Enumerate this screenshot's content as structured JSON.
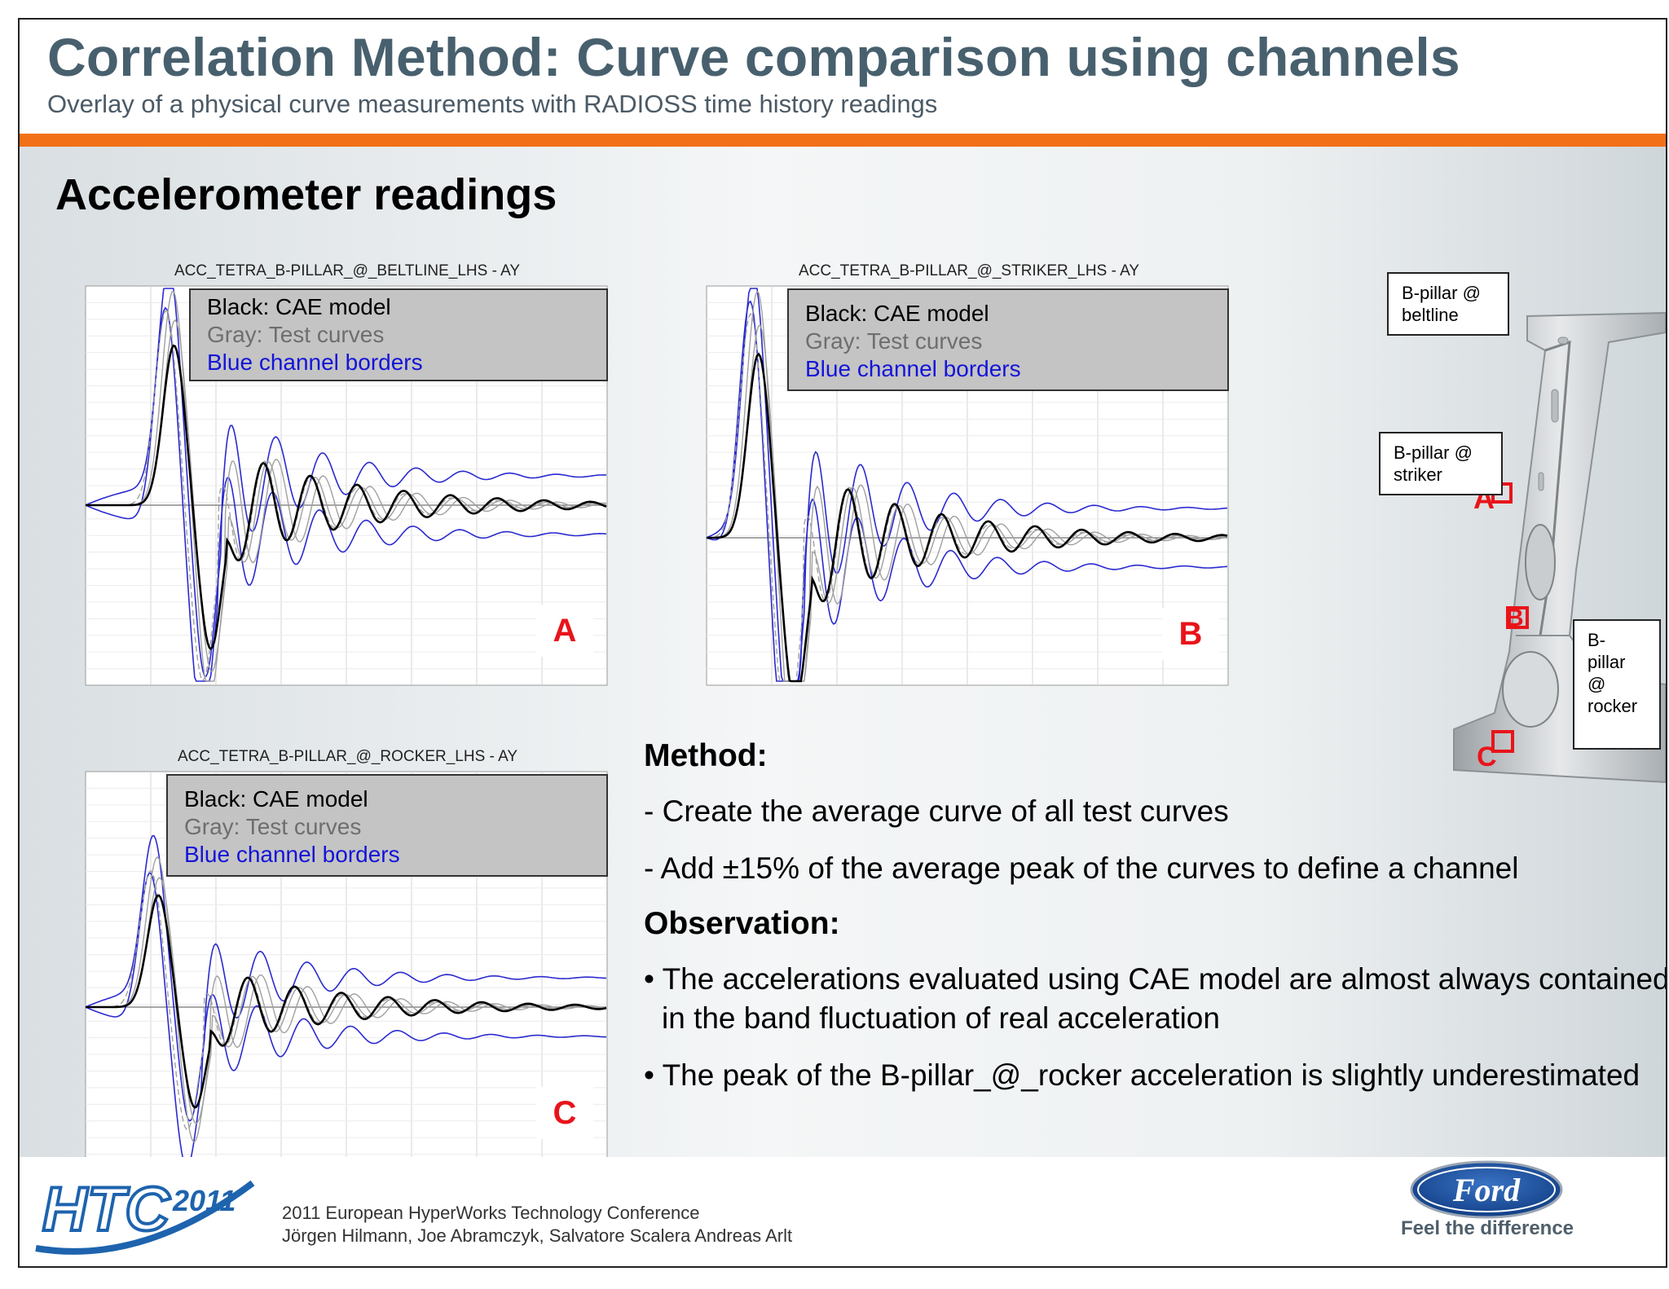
{
  "header": {
    "title": "Correlation Method: Curve comparison using channels",
    "subtitle": "Overlay of a physical curve measurements with RADIOSS time history readings"
  },
  "section_heading": "Accelerometer readings",
  "legend": {
    "black": "Black: CAE model",
    "gray": "Gray: Test curves",
    "blue": "Blue channel borders"
  },
  "charts": [
    {
      "title": "ACC_TETRA_B-PILLAR_@_BELTLINE_LHS - AY",
      "marker": "A"
    },
    {
      "title": "ACC_TETRA_B-PILLAR_@_STRIKER_LHS - AY",
      "marker": "B"
    },
    {
      "title": "ACC_TETRA_B-PILLAR_@_ROCKER_LHS - AY",
      "marker": "C"
    }
  ],
  "method": {
    "method_heading": "Method:",
    "steps": [
      "- Create the average curve of all test curves",
      "- Add ±15% of the average peak of the curves to define a channel"
    ],
    "observation_heading": "Observation:",
    "observations": [
      "• The accelerations evaluated using CAE model are almost always contained in the band fluctuation of real acceleration",
      "• The peak of the B-pillar_@_rocker acceleration is slightly underestimated"
    ]
  },
  "pillar_figure": {
    "callouts": {
      "beltline": "B-pillar @ beltline",
      "striker": "B-pillar @ striker",
      "rocker": "B- pillar @ rocker"
    },
    "markers": [
      "A",
      "B",
      "C"
    ]
  },
  "footer": {
    "logo_text": "HTC",
    "logo_year": "2011",
    "conference": "2011 European HyperWorks Technology Conference",
    "authors": "Jörgen Hilmann, Joe Abramczyk, Salvatore Scalera Andreas Arlt",
    "ford_logo": "Ford",
    "ford_tagline": "Feel the difference"
  },
  "colors": {
    "title": "#48606e",
    "accent_bar": "#f27018",
    "cae_curve": "#000000",
    "test_curve": "#a0a0a0",
    "channel_border": "#2a2ad0",
    "marker": "#e8141a",
    "ford_blue": "#1d4f9c"
  }
}
